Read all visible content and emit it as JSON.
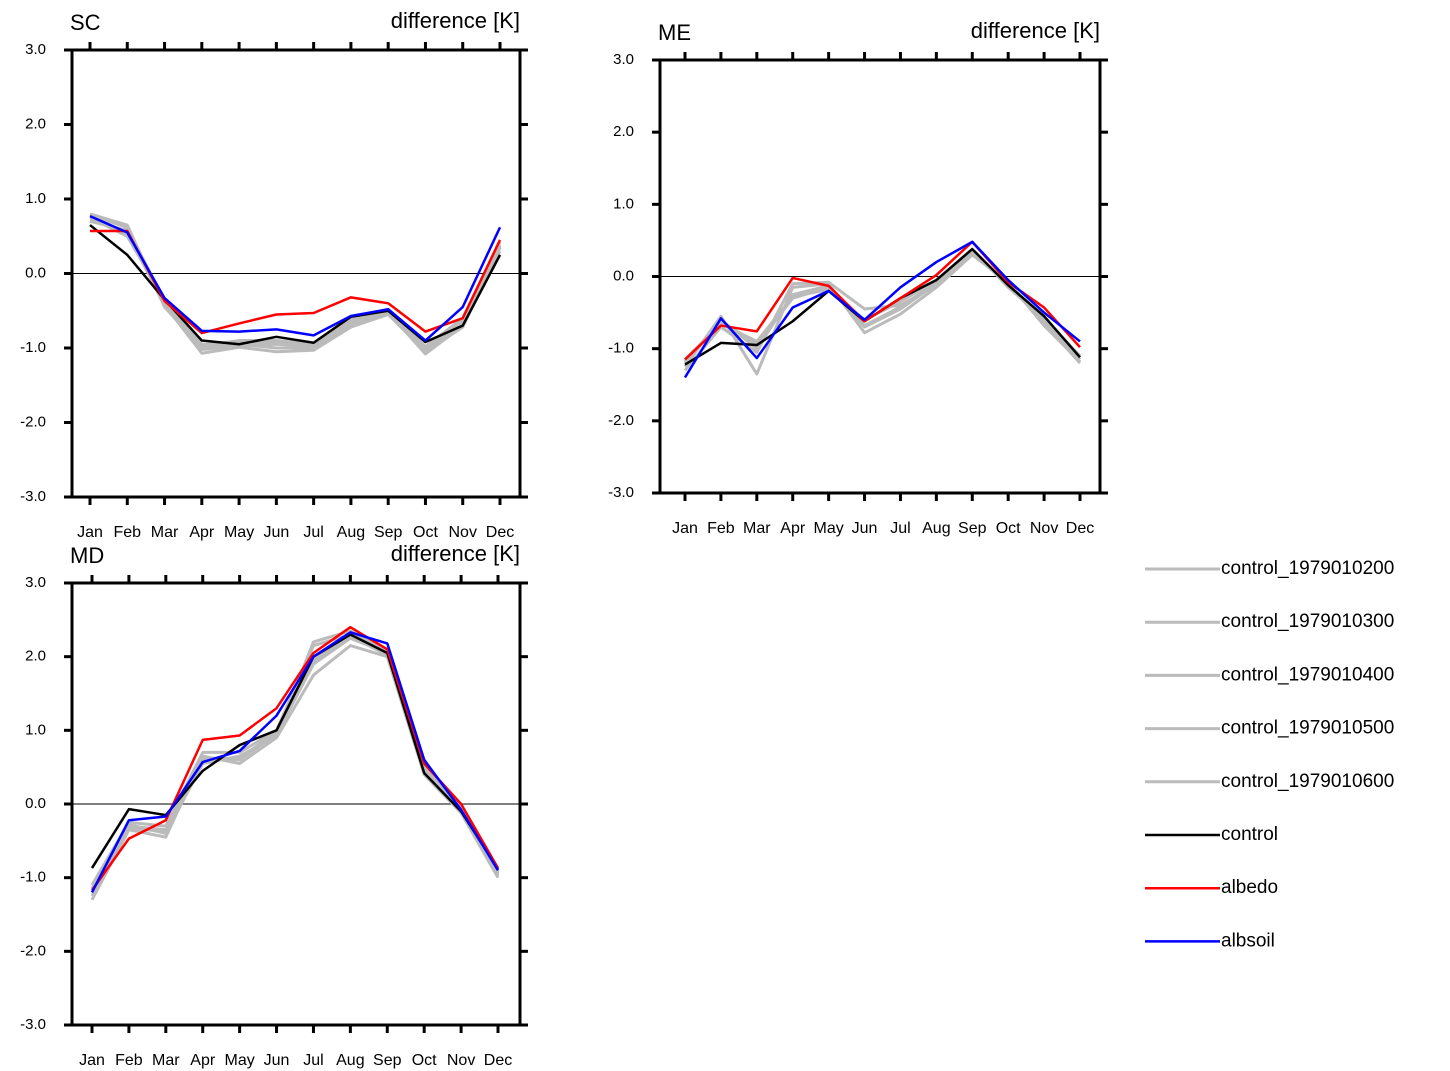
{
  "chart_data": [
    {
      "type": "line",
      "title": "SC",
      "subtitle": "difference [K]",
      "categories": [
        "Jan",
        "Feb",
        "Mar",
        "Apr",
        "May",
        "Jun",
        "Jul",
        "Aug",
        "Sep",
        "Oct",
        "Nov",
        "Dec"
      ],
      "ylim": [
        -3,
        3
      ],
      "yticks": [
        {
          "value": 3,
          "label": "3.0"
        },
        {
          "value": 2,
          "label": "2.0"
        },
        {
          "value": 1,
          "label": "1.0"
        },
        {
          "value": 0,
          "label": "0.0"
        },
        {
          "value": -1,
          "label": "-1.0"
        },
        {
          "value": -2,
          "label": "-2.0"
        },
        {
          "value": -3,
          "label": "-3.0"
        }
      ],
      "reference_line": 0,
      "series": [
        {
          "name": "control_1979010200",
          "color": "#bbbbbb",
          "values": [
            0.78,
            0.62,
            -0.38,
            -1.02,
            -0.97,
            -0.95,
            -0.98,
            -0.68,
            -0.52,
            -1.02,
            -0.68,
            0.38
          ]
        },
        {
          "name": "control_1979010300",
          "color": "#bbbbbb",
          "values": [
            0.72,
            0.55,
            -0.42,
            -1.07,
            -0.99,
            -1.05,
            -1.03,
            -0.72,
            -0.55,
            -1.05,
            -0.72,
            0.35
          ]
        },
        {
          "name": "control_1979010400",
          "color": "#bbbbbb",
          "values": [
            0.75,
            0.5,
            -0.36,
            -0.97,
            -0.9,
            -0.9,
            -0.95,
            -0.62,
            -0.48,
            -0.98,
            -0.6,
            0.42
          ]
        },
        {
          "name": "control_1979010500",
          "color": "#bbbbbb",
          "values": [
            0.8,
            0.65,
            -0.45,
            -1.0,
            -0.92,
            -0.93,
            -0.98,
            -0.7,
            -0.52,
            -1.08,
            -0.7,
            0.3
          ]
        },
        {
          "name": "control_1979010600",
          "color": "#bbbbbb",
          "values": [
            0.7,
            0.58,
            -0.4,
            -0.95,
            -0.95,
            -1.0,
            -1.0,
            -0.66,
            -0.5,
            -1.0,
            -0.64,
            0.36
          ]
        },
        {
          "name": "control",
          "color": "#000000",
          "values": [
            0.65,
            0.25,
            -0.35,
            -0.9,
            -0.95,
            -0.85,
            -0.93,
            -0.58,
            -0.5,
            -0.92,
            -0.7,
            0.25
          ]
        },
        {
          "name": "albedo",
          "color": "#ff0000",
          "values": [
            0.57,
            0.57,
            -0.37,
            -0.8,
            -0.67,
            -0.55,
            -0.53,
            -0.32,
            -0.4,
            -0.78,
            -0.6,
            0.45
          ]
        },
        {
          "name": "albsoil",
          "color": "#0000ff",
          "values": [
            0.77,
            0.55,
            -0.33,
            -0.77,
            -0.78,
            -0.75,
            -0.83,
            -0.57,
            -0.48,
            -0.9,
            -0.45,
            0.62
          ]
        }
      ]
    },
    {
      "type": "line",
      "title": "ME",
      "subtitle": "difference [K]",
      "categories": [
        "Jan",
        "Feb",
        "Mar",
        "Apr",
        "May",
        "Jun",
        "Jul",
        "Aug",
        "Sep",
        "Oct",
        "Nov",
        "Dec"
      ],
      "ylim": [
        -3,
        3
      ],
      "yticks": [
        {
          "value": 3,
          "label": "3.0"
        },
        {
          "value": 2,
          "label": "2.0"
        },
        {
          "value": 1,
          "label": "1.0"
        },
        {
          "value": 0,
          "label": "0.0"
        },
        {
          "value": -1,
          "label": "-1.0"
        },
        {
          "value": -2,
          "label": "-2.0"
        },
        {
          "value": -3,
          "label": "-3.0"
        }
      ],
      "reference_line": 0,
      "series": [
        {
          "name": "control_1979010200",
          "color": "#bbbbbb",
          "values": [
            -1.2,
            -0.6,
            -1.0,
            -0.25,
            -0.13,
            -0.7,
            -0.45,
            -0.1,
            0.35,
            -0.12,
            -0.62,
            -1.15
          ]
        },
        {
          "name": "control_1979010300",
          "color": "#bbbbbb",
          "values": [
            -1.25,
            -0.55,
            -1.35,
            -0.15,
            -0.1,
            -0.78,
            -0.52,
            -0.15,
            0.3,
            -0.08,
            -0.68,
            -1.18
          ]
        },
        {
          "name": "control_1979010400",
          "color": "#bbbbbb",
          "values": [
            -1.15,
            -0.65,
            -0.9,
            -0.28,
            -0.18,
            -0.6,
            -0.35,
            -0.05,
            0.38,
            -0.15,
            -0.58,
            -1.1
          ]
        },
        {
          "name": "control_1979010500",
          "color": "#bbbbbb",
          "values": [
            -1.3,
            -0.7,
            -1.05,
            -0.1,
            -0.08,
            -0.45,
            -0.4,
            -0.12,
            0.32,
            -0.1,
            -0.65,
            -1.2
          ]
        },
        {
          "name": "control_1979010600",
          "color": "#bbbbbb",
          "values": [
            -1.18,
            -0.62,
            -0.95,
            -0.3,
            -0.15,
            -0.68,
            -0.42,
            -0.08,
            0.36,
            -0.12,
            -0.6,
            -1.12
          ]
        },
        {
          "name": "control",
          "color": "#000000",
          "values": [
            -1.22,
            -0.92,
            -0.95,
            -0.62,
            -0.2,
            -0.62,
            -0.3,
            -0.05,
            0.38,
            -0.12,
            -0.55,
            -1.12
          ]
        },
        {
          "name": "albedo",
          "color": "#ff0000",
          "values": [
            -1.15,
            -0.68,
            -0.76,
            -0.02,
            -0.13,
            -0.62,
            -0.3,
            0.02,
            0.48,
            -0.08,
            -0.43,
            -0.98
          ]
        },
        {
          "name": "albsoil",
          "color": "#0000ff",
          "values": [
            -1.4,
            -0.58,
            -1.13,
            -0.43,
            -0.2,
            -0.6,
            -0.15,
            0.2,
            0.48,
            -0.05,
            -0.5,
            -0.9
          ]
        }
      ]
    },
    {
      "type": "line",
      "title": "MD",
      "subtitle": "difference [K]",
      "categories": [
        "Jan",
        "Feb",
        "Mar",
        "Apr",
        "May",
        "Jun",
        "Jul",
        "Aug",
        "Sep",
        "Oct",
        "Nov",
        "Dec"
      ],
      "ylim": [
        -3,
        3
      ],
      "yticks": [
        {
          "value": 3,
          "label": "3.0"
        },
        {
          "value": 2,
          "label": "2.0"
        },
        {
          "value": 1,
          "label": "1.0"
        },
        {
          "value": 0,
          "label": "0.0"
        },
        {
          "value": -1,
          "label": "-1.0"
        },
        {
          "value": -2,
          "label": "-2.0"
        },
        {
          "value": -3,
          "label": "-3.0"
        }
      ],
      "reference_line": 0,
      "series": [
        {
          "name": "control_1979010200",
          "color": "#bbbbbb",
          "values": [
            -1.2,
            -0.3,
            -0.35,
            0.6,
            0.6,
            0.95,
            1.9,
            2.25,
            2.05,
            0.45,
            -0.1,
            -0.95
          ]
        },
        {
          "name": "control_1979010300",
          "color": "#bbbbbb",
          "values": [
            -1.3,
            -0.35,
            -0.45,
            0.65,
            0.55,
            0.9,
            1.75,
            2.15,
            2.0,
            0.4,
            -0.12,
            -1.0
          ]
        },
        {
          "name": "control_1979010400",
          "color": "#bbbbbb",
          "values": [
            -1.1,
            -0.25,
            -0.3,
            0.7,
            0.7,
            1.0,
            2.15,
            2.3,
            2.08,
            0.5,
            -0.05,
            -0.92
          ]
        },
        {
          "name": "control_1979010500",
          "color": "#bbbbbb",
          "values": [
            -1.15,
            -0.28,
            -0.4,
            0.55,
            0.65,
            0.92,
            2.2,
            2.35,
            2.1,
            0.48,
            -0.08,
            -0.97
          ]
        },
        {
          "name": "control_1979010600",
          "color": "#bbbbbb",
          "values": [
            -1.25,
            -0.32,
            -0.38,
            0.62,
            0.62,
            0.98,
            1.95,
            2.28,
            2.02,
            0.44,
            -0.1,
            -0.94
          ]
        },
        {
          "name": "control",
          "color": "#000000",
          "values": [
            -0.87,
            -0.07,
            -0.15,
            0.45,
            0.8,
            1.0,
            2.0,
            2.3,
            2.05,
            0.42,
            -0.1,
            -0.88
          ]
        },
        {
          "name": "albedo",
          "color": "#ff0000",
          "values": [
            -1.17,
            -0.47,
            -0.22,
            0.87,
            0.93,
            1.3,
            2.05,
            2.4,
            2.1,
            0.55,
            0.0,
            -0.87
          ]
        },
        {
          "name": "albsoil",
          "color": "#0000ff",
          "values": [
            -1.2,
            -0.22,
            -0.17,
            0.57,
            0.72,
            1.2,
            2.0,
            2.33,
            2.18,
            0.6,
            -0.08,
            -0.9
          ]
        }
      ]
    }
  ]
}
